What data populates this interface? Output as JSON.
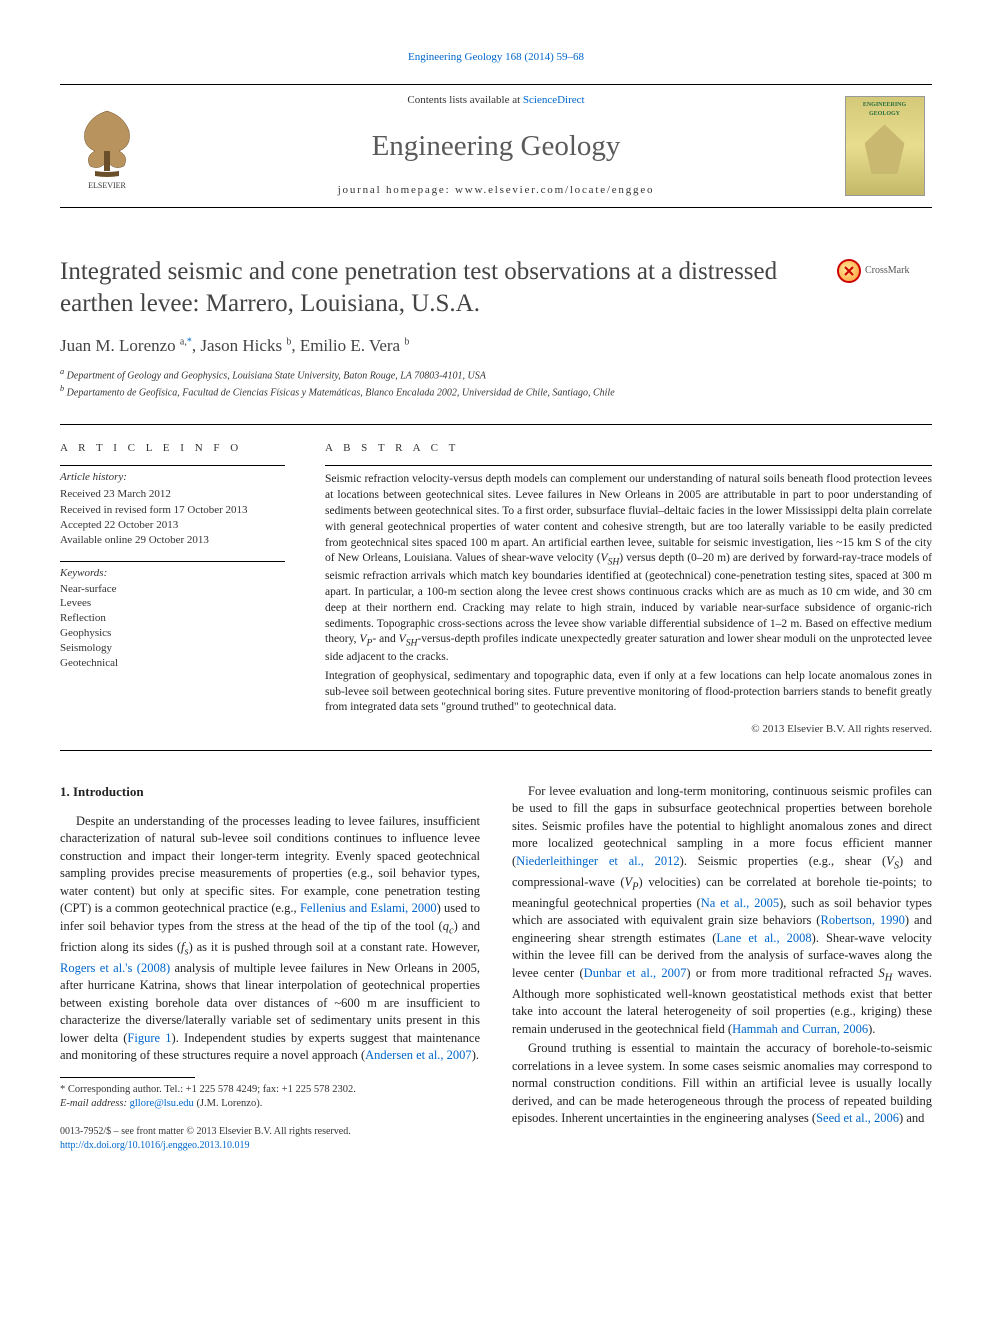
{
  "header": {
    "citation_link": "Engineering Geology 168 (2014) 59–68",
    "contents_line_prefix": "Contents lists available at ",
    "sciencedirect": "ScienceDirect",
    "journal_name": "Engineering Geology",
    "homepage_prefix": "journal homepage: ",
    "homepage_url": "www.elsevier.com/locate/enggeo",
    "elsevier_label": "ELSEVIER",
    "cover_title": "ENGINEERING GEOLOGY"
  },
  "crossmark": "CrossMark",
  "title": "Integrated seismic and cone penetration test observations at a distressed earthen levee: Marrero, Louisiana, U.S.A.",
  "authors_html": "Juan M. Lorenzo <sup>a,</sup><span class='star'>*</span>, Jason Hicks <sup>b</sup>, Emilio E. Vera <sup>b</sup>",
  "affiliations": [
    "a Department of Geology and Geophysics, Louisiana State University, Baton Rouge, LA 70803-4101, USA",
    "b Departamento de Geofísica, Facultad de Ciencias Físicas y Matemáticas, Blanco Encalada 2002, Universidad de Chile, Santiago, Chile"
  ],
  "article_info": {
    "heading": "A R T I C L E   I N F O",
    "history_head": "Article history:",
    "history": [
      "Received 23 March 2012",
      "Received in revised form 17 October 2013",
      "Accepted 22 October 2013",
      "Available online 29 October 2013"
    ],
    "keywords_head": "Keywords:",
    "keywords": [
      "Near-surface",
      "Levees",
      "Reflection",
      "Geophysics",
      "Seismology",
      "Geotechnical"
    ]
  },
  "abstract": {
    "heading": "A B S T R A C T",
    "para1": "Seismic refraction velocity-versus depth models can complement our understanding of natural soils beneath flood protection levees at locations between geotechnical sites. Levee failures in New Orleans in 2005 are attributable in part to poor understanding of sediments between geotechnical sites. To a first order, subsurface fluvial–deltaic facies in the lower Mississippi delta plain correlate with general geotechnical properties of water content and cohesive strength, but are too laterally variable to be easily predicted from geotechnical sites spaced 100 m apart. An artificial earthen levee, suitable for seismic investigation, lies ~15 km S of the city of New Orleans, Louisiana. Values of shear-wave velocity (V_SH) versus depth (0–20 m) are derived by forward-ray-trace models of seismic refraction arrivals which match key boundaries identified at (geotechnical) cone-penetration testing sites, spaced at 300 m apart. In particular, a 100-m section along the levee crest shows continuous cracks which are as much as 10 cm wide, and 30 cm deep at their northern end. Cracking may relate to high strain, induced by variable near-surface subsidence of organic-rich sediments. Topographic cross-sections across the levee show variable differential subsidence of 1–2 m. Based on effective medium theory, V_P- and V_SH-versus-depth profiles indicate unexpectedly greater saturation and lower shear moduli on the unprotected levee side adjacent to the cracks.",
    "para2": "Integration of geophysical, sedimentary and topographic data, even if only at a few locations can help locate anomalous zones in sub-levee soil between geotechnical boring sites. Future preventive monitoring of flood-protection barriers stands to benefit greatly from integrated data sets \"ground truthed\" to geotechnical data.",
    "copyright": "© 2013 Elsevier B.V. All rights reserved."
  },
  "intro": {
    "heading": "1. Introduction",
    "col1_p1": "Despite an understanding of the processes leading to levee failures, insufficient characterization of natural sub-levee soil conditions continues to influence levee construction and impact their longer-term integrity. Evenly spaced geotechnical sampling provides precise measurements of properties (e.g., soil behavior types, water content) but only at specific sites. For example, cone penetration testing (CPT) is a common geotechnical practice (e.g., Fellenius and Eslami, 2000) used to infer soil behavior types from the stress at the head of the tip of the tool (q_c) and friction along its sides (f_s) as it is pushed through soil at a constant rate. However, Rogers et al.'s (2008) analysis of multiple levee failures in New Orleans in 2005, after hurricane Katrina, shows that linear interpolation of geotechnical properties between existing borehole data over distances of ~600 m are insufficient to characterize the diverse/laterally variable set of sedimentary units present in this lower delta (Figure 1). Independent studies by experts suggest that maintenance and monitoring of these structures require a novel approach (Andersen et al., 2007).",
    "col2_p1": "For levee evaluation and long-term monitoring, continuous seismic profiles can be used to fill the gaps in subsurface geotechnical properties between borehole sites. Seismic profiles have the potential to highlight anomalous zones and direct more localized geotechnical sampling in a more focus efficient manner (Niederleithinger et al., 2012). Seismic properties (e.g., shear (V_S) and compressional-wave (V_P) velocities) can be correlated at borehole tie-points; to meaningful geotechnical properties (Na et al., 2005), such as soil behavior types which are associated with equivalent grain size behaviors (Robertson, 1990) and engineering shear strength estimates (Lane et al., 2008). Shear-wave velocity within the levee fill can be derived from the analysis of surface-waves along the levee center (Dunbar et al., 2007) or from more traditional refracted S_H waves. Although more sophisticated well-known geostatistical methods exist that better take into account the lateral heterogeneity of soil properties (e.g., kriging) these remain underused in the geotechnical field (Hammah and Curran, 2006).",
    "col2_p2": "Ground truthing is essential to maintain the accuracy of borehole-to-seismic correlations in a levee system. In some cases seismic anomalies may correspond to normal construction conditions. Fill within an artificial levee is usually locally derived, and can be made heterogeneous through the process of repeated building episodes. Inherent uncertainties in the engineering analyses (Seed et al., 2006) and"
  },
  "footnote": {
    "corresponding": "* Corresponding author. Tel.: +1 225 578 4249; fax: +1 225 578 2302.",
    "email_label": "E-mail address:",
    "email": "gllore@lsu.edu",
    "email_name": "(J.M. Lorenzo)."
  },
  "footer": {
    "issn": "0013-7952/$ – see front matter © 2013 Elsevier B.V. All rights reserved.",
    "doi": "http://dx.doi.org/10.1016/j.enggeo.2013.10.019"
  },
  "colors": {
    "link": "#0066cc",
    "text": "#222222"
  }
}
